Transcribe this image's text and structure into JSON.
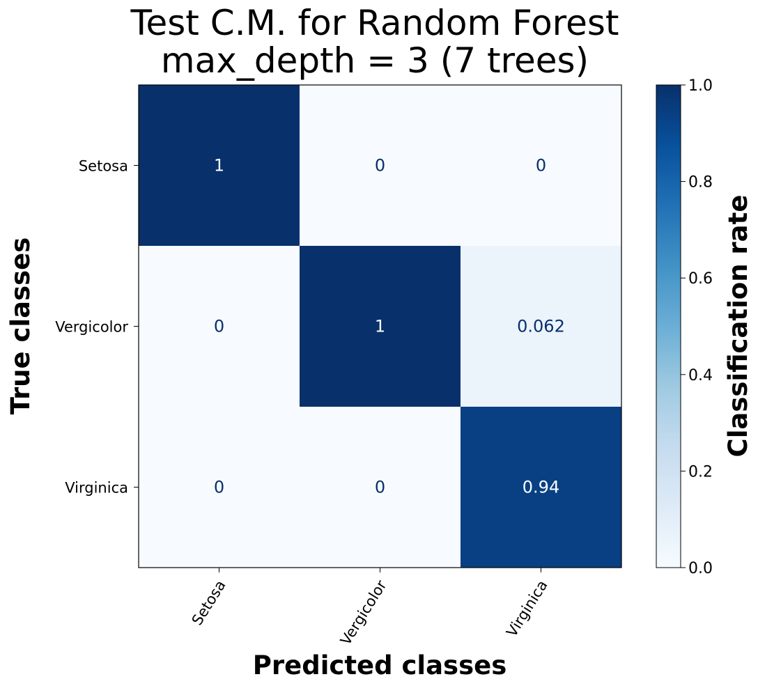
{
  "chart_data": {
    "type": "heatmap",
    "title": "Test C.M. for Random Forest\nmax_depth = 3 (7 trees)",
    "xlabel": "Predicted classes",
    "ylabel": "True classes",
    "colorbar_label": "Classification rate",
    "x_categories": [
      "Setosa",
      "Vergicolor",
      "Virginica"
    ],
    "y_categories": [
      "Setosa",
      "Vergicolor",
      "Virginica"
    ],
    "values": [
      [
        1,
        0,
        0
      ],
      [
        0,
        1,
        0.062
      ],
      [
        0,
        0,
        0.94
      ]
    ],
    "cell_labels": [
      [
        "1",
        "0",
        "0"
      ],
      [
        "0",
        "1",
        "0.062"
      ],
      [
        "0",
        "0",
        "0.94"
      ]
    ],
    "colorbar_range": [
      0.0,
      1.0
    ],
    "colorbar_ticks": [
      "0.0",
      "0.2",
      "0.4",
      "0.6",
      "0.8",
      "1.0"
    ],
    "colormap": "Blues",
    "colors": {
      "low": "#f7fbff",
      "high": "#08306b",
      "text_dark": "#08306b",
      "text_light": "#ffffff"
    }
  }
}
